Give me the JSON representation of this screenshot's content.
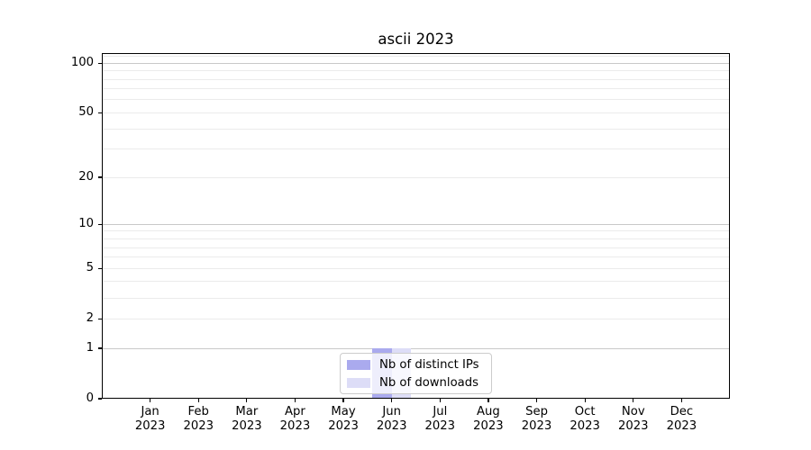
{
  "chart_data": {
    "type": "bar",
    "title": "ascii 2023",
    "categories": [
      "Jan 2023",
      "Feb 2023",
      "Mar 2023",
      "Apr 2023",
      "May 2023",
      "Jun 2023",
      "Jul 2023",
      "Aug 2023",
      "Sep 2023",
      "Oct 2023",
      "Nov 2023",
      "Dec 2023"
    ],
    "series": [
      {
        "name": "Nb of distinct IPs",
        "color": "#aaaaee",
        "values": [
          0,
          0,
          0,
          0,
          0,
          1,
          0,
          0,
          0,
          0,
          0,
          0
        ]
      },
      {
        "name": "Nb of downloads",
        "color": "#ddddf7",
        "values": [
          0,
          0,
          0,
          0,
          0,
          1,
          0,
          0,
          0,
          0,
          0,
          0
        ]
      }
    ],
    "xlabel": "",
    "ylabel": "",
    "yscale": "log1p",
    "ylim": [
      0,
      115
    ],
    "ytick_labels": [
      100,
      50,
      20,
      10,
      5,
      2,
      1,
      0
    ],
    "ygrid_major": [
      1,
      10,
      100
    ],
    "ygrid_minor": [
      2,
      3,
      4,
      5,
      6,
      7,
      8,
      9,
      20,
      30,
      40,
      50,
      60,
      70,
      80,
      90,
      110
    ],
    "grid": true,
    "legend_position": "bottom-center",
    "bar_group_width_ratio": 0.8
  },
  "colors": {
    "background": "#ffffff",
    "spine": "#000000",
    "grid_major": "#c9c9c9",
    "grid_minor": "#ebebeb",
    "tick": "#000000",
    "text": "#000000",
    "legend_border": "#cccccc",
    "legend_background": "rgba(255,255,255,0.8)"
  }
}
